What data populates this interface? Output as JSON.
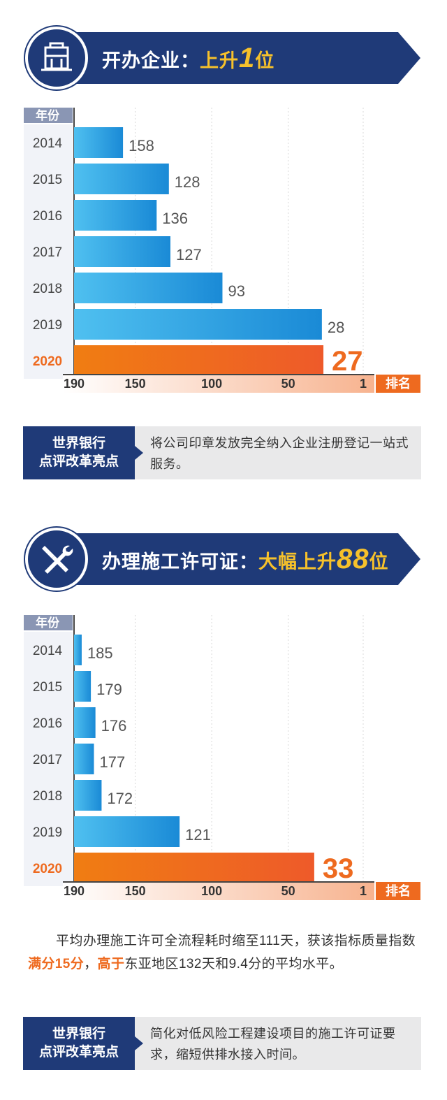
{
  "section1": {
    "title_prefix": "开办企业：",
    "title_highlight": "上升",
    "title_number": "1",
    "title_suffix": "位",
    "icon": "building-icon"
  },
  "section2": {
    "title_prefix": "办理施工许可证：",
    "title_highlight": "大幅上升",
    "title_number": "88",
    "title_suffix": "位",
    "icon": "wrench-screwdriver-icon"
  },
  "chart_data": [
    {
      "type": "bar",
      "orientation": "horizontal",
      "ylabel": "年份",
      "xlabel": "排名",
      "categories": [
        "2014",
        "2015",
        "2016",
        "2017",
        "2018",
        "2019",
        "2020"
      ],
      "values": [
        158,
        128,
        136,
        127,
        93,
        28,
        27
      ],
      "x_ticks": [
        "190",
        "150",
        "100",
        "50",
        "1"
      ],
      "xlim": [
        190,
        1
      ],
      "highlight_category": "2020",
      "grid": true
    },
    {
      "type": "bar",
      "orientation": "horizontal",
      "ylabel": "年份",
      "xlabel": "排名",
      "categories": [
        "2014",
        "2015",
        "2016",
        "2017",
        "2018",
        "2019",
        "2020"
      ],
      "values": [
        185,
        179,
        176,
        177,
        172,
        121,
        33
      ],
      "x_ticks": [
        "190",
        "150",
        "100",
        "50",
        "1"
      ],
      "xlim": [
        190,
        1
      ],
      "highlight_category": "2020",
      "grid": true
    }
  ],
  "review1": {
    "label_line1": "世界银行",
    "label_line2": "点评改革亮点",
    "text": "将公司印章发放完全纳入企业注册登记一站式服务。"
  },
  "paragraph": {
    "part1": "平均办理施工许可全流程耗时缩至111天，获该指标质量指数",
    "highlight1": "满分15分",
    "part2": "，",
    "highlight2": "高于",
    "part3": "东亚地区132天和9.4分的平均水平。"
  },
  "review2": {
    "label_line1": "世界银行",
    "label_line2": "点评改革亮点",
    "text": "简化对低风险工程建设项目的施工许可证要求，缩短供排水接入时间。"
  },
  "colors": {
    "navy": "#1f3a78",
    "gold": "#f6c12b",
    "orange": "#ee6a1f",
    "blue_start": "#4fc0f0",
    "blue_end": "#1a8ad6"
  }
}
